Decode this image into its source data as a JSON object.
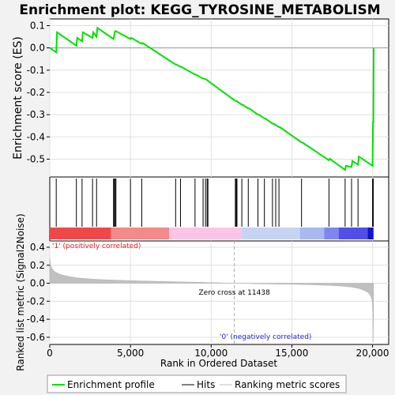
{
  "chart_data": {
    "type": "line",
    "title": "Enrichment plot: KEGG_TYROSINE_METABOLISM",
    "xlabel": "Rank in Ordered Dataset",
    "ylabel_top": "Enrichment score (ES)",
    "ylabel_bottom": "Ranked list metric (Signal2Noise)",
    "xlim": [
      0,
      21000
    ],
    "x_ticks": [
      0,
      5000,
      10000,
      15000,
      20000
    ],
    "x_tick_labels": [
      "0",
      "5,000",
      "10,000",
      "15,000",
      "20,000"
    ],
    "es_ylim": [
      -0.58,
      0.13
    ],
    "es_ticks": [
      0.1,
      0.0,
      -0.1,
      -0.2,
      -0.3,
      -0.4,
      -0.5
    ],
    "es_tick_labels": [
      "0.1",
      "0.0",
      "-0.1",
      "-0.2",
      "-0.3",
      "-0.4",
      "-0.5"
    ],
    "metric_ylim": [
      -0.68,
      0.47
    ],
    "metric_ticks": [
      0.4,
      0.2,
      0.0,
      -0.2,
      -0.4,
      -0.6
    ],
    "metric_tick_labels": [
      "0.4",
      "0.2",
      "0.0",
      "-0.2",
      "-0.4",
      "-0.6"
    ],
    "enrichment_profile": {
      "x": [
        0,
        400,
        450,
        1650,
        1700,
        2000,
        2050,
        2650,
        2700,
        2900,
        2950,
        3950,
        4000,
        4050,
        4100,
        5000,
        5050,
        5700,
        5750,
        7800,
        7850,
        8100,
        8150,
        9000,
        9050,
        9500,
        9550,
        9650,
        9700,
        9750,
        9800,
        11500,
        11550,
        11600,
        11650,
        11900,
        11950,
        12300,
        12350,
        12900,
        12950,
        13300,
        13350,
        13800,
        13850,
        14000,
        14050,
        14200,
        14250,
        15600,
        15650,
        17300,
        17350,
        18300,
        18350,
        18700,
        18750,
        19100,
        19150,
        20000,
        20030,
        20050,
        20070
      ],
      "y": [
        0.0,
        -0.02,
        0.07,
        0.01,
        0.045,
        0.03,
        0.07,
        0.045,
        0.07,
        0.05,
        0.09,
        0.04,
        0.06,
        0.075,
        0.075,
        0.04,
        0.045,
        0.018,
        0.022,
        -0.075,
        -0.075,
        -0.085,
        -0.085,
        -0.12,
        -0.12,
        -0.138,
        -0.138,
        -0.14,
        -0.142,
        -0.145,
        -0.148,
        -0.238,
        -0.238,
        -0.24,
        -0.243,
        -0.255,
        -0.255,
        -0.272,
        -0.272,
        -0.3,
        -0.3,
        -0.317,
        -0.317,
        -0.34,
        -0.34,
        -0.348,
        -0.348,
        -0.356,
        -0.356,
        -0.425,
        -0.425,
        -0.505,
        -0.498,
        -0.548,
        -0.53,
        -0.535,
        -0.508,
        -0.525,
        -0.488,
        -0.53,
        -0.335,
        -0.335,
        0.0
      ]
    },
    "hits": [
      400,
      1650,
      2000,
      2650,
      2900,
      3950,
      4000,
      4050,
      4100,
      5000,
      5700,
      7800,
      8100,
      9000,
      9500,
      9650,
      9750,
      9800,
      11500,
      11550,
      11600,
      11900,
      12300,
      12900,
      13300,
      13800,
      14000,
      14200,
      15600,
      17300,
      18300,
      18700,
      19100,
      20000,
      20050
    ],
    "ranked_metric": {
      "x": [
        0,
        50,
        150,
        300,
        500,
        800,
        1200,
        1700,
        2500,
        3500,
        5000,
        7000,
        9000,
        11438,
        13000,
        15000,
        16500,
        17500,
        18300,
        18800,
        19200,
        19500,
        19700,
        19850,
        19950,
        20000,
        20030,
        20060
      ],
      "y": [
        0.27,
        0.2,
        0.16,
        0.13,
        0.11,
        0.09,
        0.075,
        0.06,
        0.048,
        0.038,
        0.028,
        0.02,
        0.012,
        0.0,
        -0.006,
        -0.012,
        -0.018,
        -0.025,
        -0.035,
        -0.045,
        -0.06,
        -0.08,
        -0.1,
        -0.13,
        -0.17,
        -0.22,
        -0.35,
        -0.65
      ]
    },
    "zero_cross_rank": 11438,
    "zero_cross_label": "Zero cross at 11438",
    "pos_label": "'1' (positively correlated)",
    "neg_label": "'0' (negatively correlated)",
    "heatbar_segments": [
      {
        "x0": 0,
        "x1": 3800,
        "color": "#f04848"
      },
      {
        "x0": 3800,
        "x1": 7400,
        "color": "#f48a8a"
      },
      {
        "x0": 7400,
        "x1": 11900,
        "color": "#fcc4e6"
      },
      {
        "x0": 11900,
        "x1": 15500,
        "color": "#c6d4f4"
      },
      {
        "x0": 15500,
        "x1": 17000,
        "color": "#a8b8f0"
      },
      {
        "x0": 17000,
        "x1": 17900,
        "color": "#7c88ee"
      },
      {
        "x0": 17900,
        "x1": 19700,
        "color": "#5050e8"
      },
      {
        "x0": 19700,
        "x1": 20060,
        "color": "#1414c8"
      }
    ],
    "legend": {
      "placement": "bottom",
      "entries": [
        "Enrichment profile",
        "Hits",
        "Ranking metric scores"
      ]
    },
    "colors": {
      "profile": "#00e000",
      "hits": "#000000",
      "metric_fill": "#c0c0c0",
      "zero_line": "#a8a8a8",
      "pos_text": "#e02020",
      "neg_text": "#2828d8"
    }
  }
}
